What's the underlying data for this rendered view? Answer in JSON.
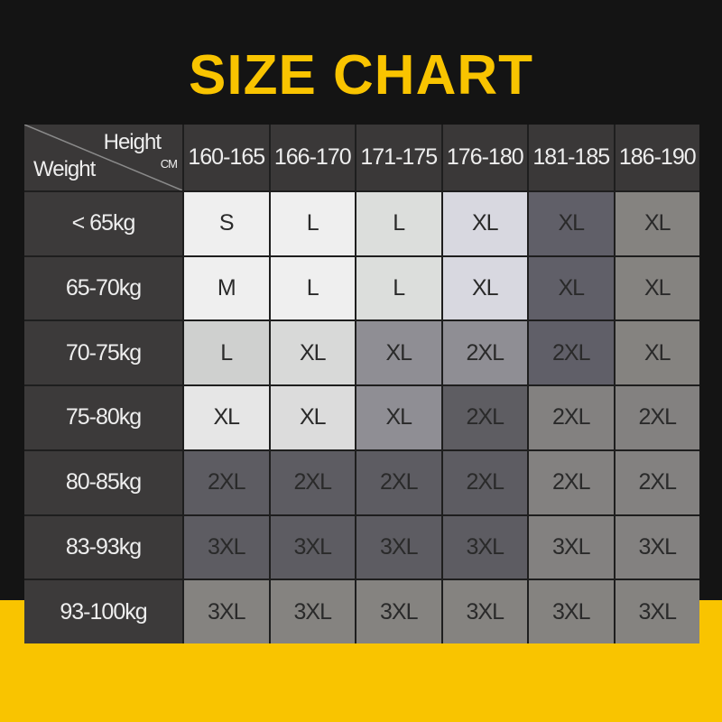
{
  "title": "SIZE CHART",
  "corner": {
    "height_label": "Height",
    "unit": "CM",
    "weight_label": "Weight"
  },
  "heights": [
    "160-165",
    "166-170",
    "171-175",
    "176-180",
    "181-185",
    "186-190"
  ],
  "rows": [
    {
      "weight": "< 65kg",
      "sizes": [
        "S",
        "L",
        "L",
        "XL",
        "XL",
        "XL"
      ]
    },
    {
      "weight": "65-70kg",
      "sizes": [
        "M",
        "L",
        "L",
        "XL",
        "XL",
        "XL"
      ]
    },
    {
      "weight": "70-75kg",
      "sizes": [
        "L",
        "XL",
        "XL",
        "2XL",
        "2XL",
        "XL"
      ]
    },
    {
      "weight": "75-80kg",
      "sizes": [
        "XL",
        "XL",
        "XL",
        "2XL",
        "2XL",
        "2XL"
      ]
    },
    {
      "weight": "80-85kg",
      "sizes": [
        "2XL",
        "2XL",
        "2XL",
        "2XL",
        "2XL",
        "2XL"
      ]
    },
    {
      "weight": "83-93kg",
      "sizes": [
        "3XL",
        "3XL",
        "3XL",
        "3XL",
        "3XL",
        "3XL"
      ]
    },
    {
      "weight": "93-100kg",
      "sizes": [
        "3XL",
        "3XL",
        "3XL",
        "3XL",
        "3XL",
        "3XL"
      ]
    }
  ],
  "colors": {
    "title": "#f9c400",
    "background": "#141414",
    "footer": "#f9c400",
    "cells": [
      [
        "#efefef",
        "#efefef",
        "#dcdedc",
        "#d8d8e0",
        "#605f68",
        "#858380"
      ],
      [
        "#efefef",
        "#efefef",
        "#dcdedc",
        "#d8d8e0",
        "#605f68",
        "#858380"
      ],
      [
        "#cfd0cf",
        "#d8d9d8",
        "#8f8e94",
        "#8f8e94",
        "#605f68",
        "#858380"
      ],
      [
        "#e6e6e6",
        "#dcdcdc",
        "#8f8e94",
        "#5e5d62",
        "#838180",
        "#838180"
      ],
      [
        "#5d5c62",
        "#5d5c62",
        "#5d5c62",
        "#5d5c62",
        "#838180",
        "#838180"
      ],
      [
        "#5d5c62",
        "#5d5c62",
        "#5d5c62",
        "#5d5c62",
        "#838180",
        "#838180"
      ],
      [
        "#858380",
        "#858380",
        "#858380",
        "#858380",
        "#858380",
        "#858380"
      ]
    ]
  }
}
